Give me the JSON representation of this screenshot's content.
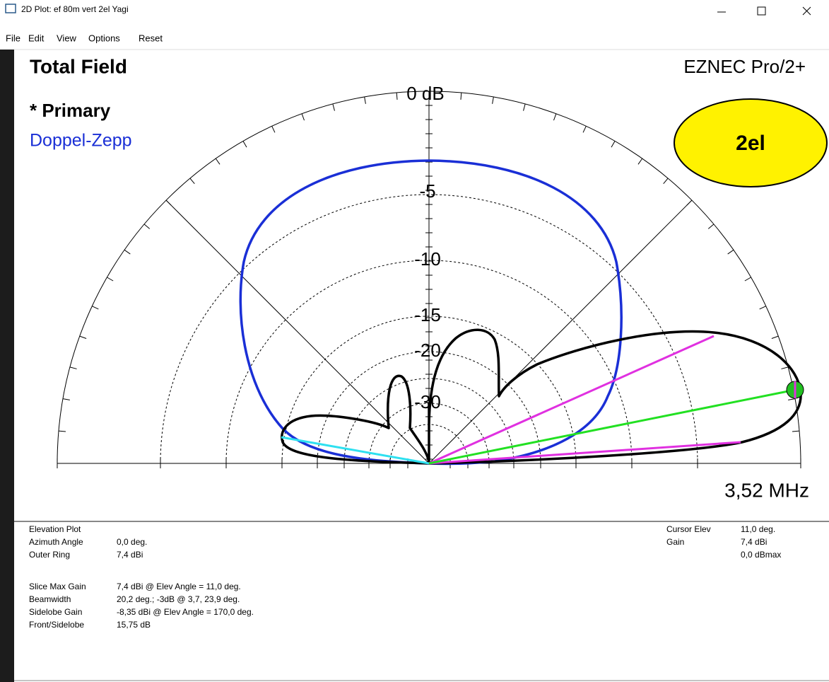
{
  "window": {
    "title": "2D Plot: ef 80m vert 2el Yagi"
  },
  "menu": [
    "File",
    "Edit",
    "View",
    "Options",
    "Reset"
  ],
  "plot": {
    "title": "Total Field",
    "brand": "EZNEC Pro/2+",
    "legend": [
      "* Primary",
      "Doppel-Zepp"
    ],
    "ring_labels": [
      "0 dB",
      "-5",
      "-10",
      "-15",
      "-20",
      "-30"
    ],
    "frequency": "3,52 MHz",
    "callout": "2el"
  },
  "info": {
    "left": [
      [
        "Elevation Plot",
        ""
      ],
      [
        "Azimuth Angle",
        "0,0 deg."
      ],
      [
        "Outer Ring",
        "7,4 dBi"
      ],
      [
        "Slice Max Gain",
        "7,4 dBi @ Elev Angle = 11,0 deg."
      ],
      [
        "Beamwidth",
        "20,2 deg.; -3dB @ 3,7, 23,9 deg."
      ],
      [
        "Sidelobe Gain",
        "-8,35 dBi @ Elev Angle = 170,0 deg."
      ],
      [
        "Front/Sidelobe",
        "15,75 dB"
      ]
    ],
    "right": [
      [
        "Cursor Elev",
        "11,0 deg."
      ],
      [
        "Gain",
        "7,4 dBi"
      ],
      [
        "",
        "0,0 dBmax"
      ]
    ]
  }
}
